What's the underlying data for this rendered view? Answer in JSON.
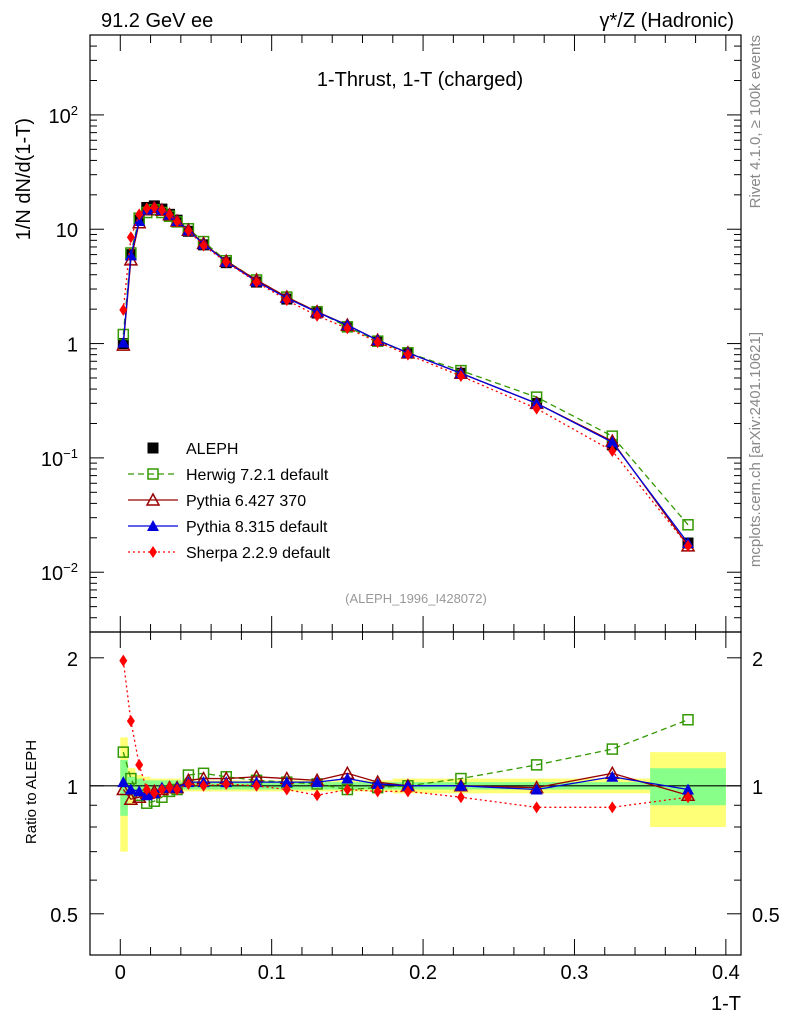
{
  "header": {
    "left": "91.2 GeV ee",
    "right": "γ*/Z (Hadronic)"
  },
  "side_labels": {
    "rivet": "Rivet 4.1.0, ≥ 100k events",
    "mcplots": "mcplots.cern.ch [arXiv:2401.10621]"
  },
  "colors": {
    "ALEPH": "#000000",
    "Herwig": "#339900",
    "Pythia6": "#990000",
    "Pythia8": "#0000dd",
    "Sherpa": "#ff0000",
    "band_inner": "#88ff88",
    "band_outer": "#ffff77"
  },
  "chart_data": [
    {
      "type": "line",
      "title": "1-Thrust, 1-T (charged)",
      "analysis_tag": "(ALEPH_1996_I428072)",
      "xlabel": "1-T",
      "ylabel": "1/N  dN/d(1-T)",
      "yscale": "log",
      "xlim": [
        -0.02,
        0.41
      ],
      "ylim": [
        0.003,
        500
      ],
      "yticks": [
        {
          "value": 0.01,
          "base": "10",
          "exp": "−2"
        },
        {
          "value": 0.1,
          "base": "10",
          "exp": "−1"
        },
        {
          "value": 1,
          "base": "1",
          "exp": ""
        },
        {
          "value": 10,
          "base": "10",
          "exp": ""
        },
        {
          "value": 100,
          "base": "10",
          "exp": "2"
        }
      ],
      "x": [
        0.002,
        0.007,
        0.0125,
        0.0175,
        0.0225,
        0.0275,
        0.0325,
        0.0375,
        0.045,
        0.055,
        0.07,
        0.09,
        0.11,
        0.13,
        0.15,
        0.17,
        0.19,
        0.225,
        0.275,
        0.325,
        0.375
      ],
      "series": [
        {
          "name": "ALEPH",
          "style": "data",
          "values": [
            1.0,
            6.0,
            12.0,
            15.5,
            16.0,
            15.0,
            13.5,
            12.0,
            9.6,
            7.3,
            5.1,
            3.45,
            2.45,
            1.85,
            1.4,
            1.05,
            0.83,
            0.55,
            0.3,
            0.13,
            0.018
          ]
        },
        {
          "name": "Herwig 7.2.1 default",
          "style": "herwig",
          "values": [
            1.2,
            6.2,
            12.5,
            14.0,
            14.8,
            14.0,
            13.0,
            11.6,
            10.1,
            7.8,
            5.3,
            3.6,
            2.55,
            1.9,
            1.4,
            1.05,
            0.83,
            0.58,
            0.34,
            0.155,
            0.026
          ]
        },
        {
          "name": "Pythia 6.427 370",
          "style": "py6",
          "values": [
            0.97,
            5.4,
            11.4,
            14.8,
            15.5,
            14.7,
            13.4,
            11.8,
            9.8,
            7.5,
            5.25,
            3.6,
            2.55,
            1.9,
            1.45,
            1.07,
            0.83,
            0.55,
            0.3,
            0.14,
            0.017
          ]
        },
        {
          "name": "Pythia 8.315 default",
          "style": "py8",
          "values": [
            1.02,
            5.9,
            11.8,
            14.9,
            15.6,
            14.8,
            13.4,
            11.8,
            9.8,
            7.4,
            5.2,
            3.5,
            2.5,
            1.88,
            1.45,
            1.07,
            0.83,
            0.55,
            0.3,
            0.137,
            0.018
          ]
        },
        {
          "name": "Sherpa 2.2.9 default",
          "style": "sherpa",
          "values": [
            1.97,
            8.5,
            13.5,
            15.2,
            15.4,
            14.7,
            13.4,
            11.7,
            9.7,
            7.2,
            5.15,
            3.45,
            2.4,
            1.75,
            1.36,
            1.03,
            0.8,
            0.52,
            0.27,
            0.115,
            0.017
          ]
        }
      ],
      "legend": {
        "position": "lower-left",
        "entries": [
          "ALEPH",
          "Herwig 7.2.1 default",
          "Pythia 6.427 370",
          "Pythia 8.315 default",
          "Sherpa 2.2.9 default"
        ]
      }
    },
    {
      "type": "line",
      "ylabel": "Ratio to ALEPH",
      "xlabel": "1-T",
      "yscale": "log",
      "xlim": [
        -0.02,
        0.41
      ],
      "ylim": [
        0.4,
        2.3
      ],
      "xticks": [
        0,
        0.1,
        0.2,
        0.3,
        0.4
      ],
      "xtick_labels": [
        "0",
        "0.1",
        "0.2",
        "0.3",
        "0.4"
      ],
      "yticks": [
        0.5,
        1,
        2
      ],
      "ytick_labels": [
        "0.5",
        "1",
        "2"
      ],
      "x": [
        0.002,
        0.007,
        0.0125,
        0.0175,
        0.0225,
        0.0275,
        0.0325,
        0.0375,
        0.045,
        0.055,
        0.07,
        0.09,
        0.11,
        0.13,
        0.15,
        0.17,
        0.19,
        0.225,
        0.275,
        0.325,
        0.375
      ],
      "bins": [
        [
          0,
          0.005
        ],
        [
          0.005,
          0.01
        ],
        [
          0.01,
          0.015
        ],
        [
          0.015,
          0.02
        ],
        [
          0.02,
          0.025
        ],
        [
          0.025,
          0.03
        ],
        [
          0.03,
          0.035
        ],
        [
          0.035,
          0.04
        ],
        [
          0.04,
          0.05
        ],
        [
          0.05,
          0.06
        ],
        [
          0.06,
          0.08
        ],
        [
          0.08,
          0.1
        ],
        [
          0.1,
          0.12
        ],
        [
          0.12,
          0.14
        ],
        [
          0.14,
          0.16
        ],
        [
          0.16,
          0.18
        ],
        [
          0.18,
          0.2
        ],
        [
          0.2,
          0.25
        ],
        [
          0.25,
          0.3
        ],
        [
          0.3,
          0.35
        ],
        [
          0.35,
          0.4
        ]
      ],
      "band_stat": [
        0.15,
        0.05,
        0.04,
        0.03,
        0.03,
        0.03,
        0.03,
        0.03,
        0.02,
        0.02,
        0.02,
        0.02,
        0.02,
        0.02,
        0.02,
        0.02,
        0.02,
        0.02,
        0.02,
        0.02,
        0.1
      ],
      "band_total": [
        0.3,
        0.1,
        0.06,
        0.05,
        0.04,
        0.04,
        0.04,
        0.04,
        0.03,
        0.03,
        0.03,
        0.03,
        0.03,
        0.03,
        0.03,
        0.03,
        0.04,
        0.04,
        0.04,
        0.04,
        0.2
      ],
      "series": [
        {
          "name": "Herwig 7.2.1 default",
          "style": "herwig",
          "values": [
            1.2,
            1.04,
            0.95,
            0.91,
            0.92,
            0.94,
            0.97,
            0.98,
            1.06,
            1.07,
            1.05,
            1.03,
            1.02,
            1.01,
            0.98,
            0.99,
            1.0,
            1.04,
            1.12,
            1.22,
            1.43
          ]
        },
        {
          "name": "Pythia 6.427 370",
          "style": "py6",
          "values": [
            0.98,
            0.93,
            0.94,
            0.96,
            0.97,
            0.98,
            0.99,
            0.99,
            1.03,
            1.04,
            1.04,
            1.05,
            1.04,
            1.03,
            1.07,
            1.02,
            1.0,
            1.0,
            0.99,
            1.07,
            0.95
          ]
        },
        {
          "name": "Pythia 8.315 default",
          "style": "py8",
          "values": [
            1.02,
            0.98,
            0.97,
            0.95,
            0.96,
            0.99,
            0.99,
            0.99,
            1.02,
            1.02,
            1.02,
            1.02,
            1.02,
            1.02,
            1.04,
            1.01,
            1.0,
            1.0,
            0.98,
            1.05,
            0.98
          ]
        },
        {
          "name": "Sherpa 2.2.9 default",
          "style": "sherpa",
          "values": [
            1.97,
            1.42,
            1.12,
            0.98,
            0.96,
            0.98,
            0.99,
            0.98,
            1.01,
            1.0,
            1.01,
            1.0,
            0.98,
            0.95,
            0.98,
            0.97,
            0.97,
            0.94,
            0.89,
            0.89,
            0.94
          ]
        }
      ]
    }
  ]
}
